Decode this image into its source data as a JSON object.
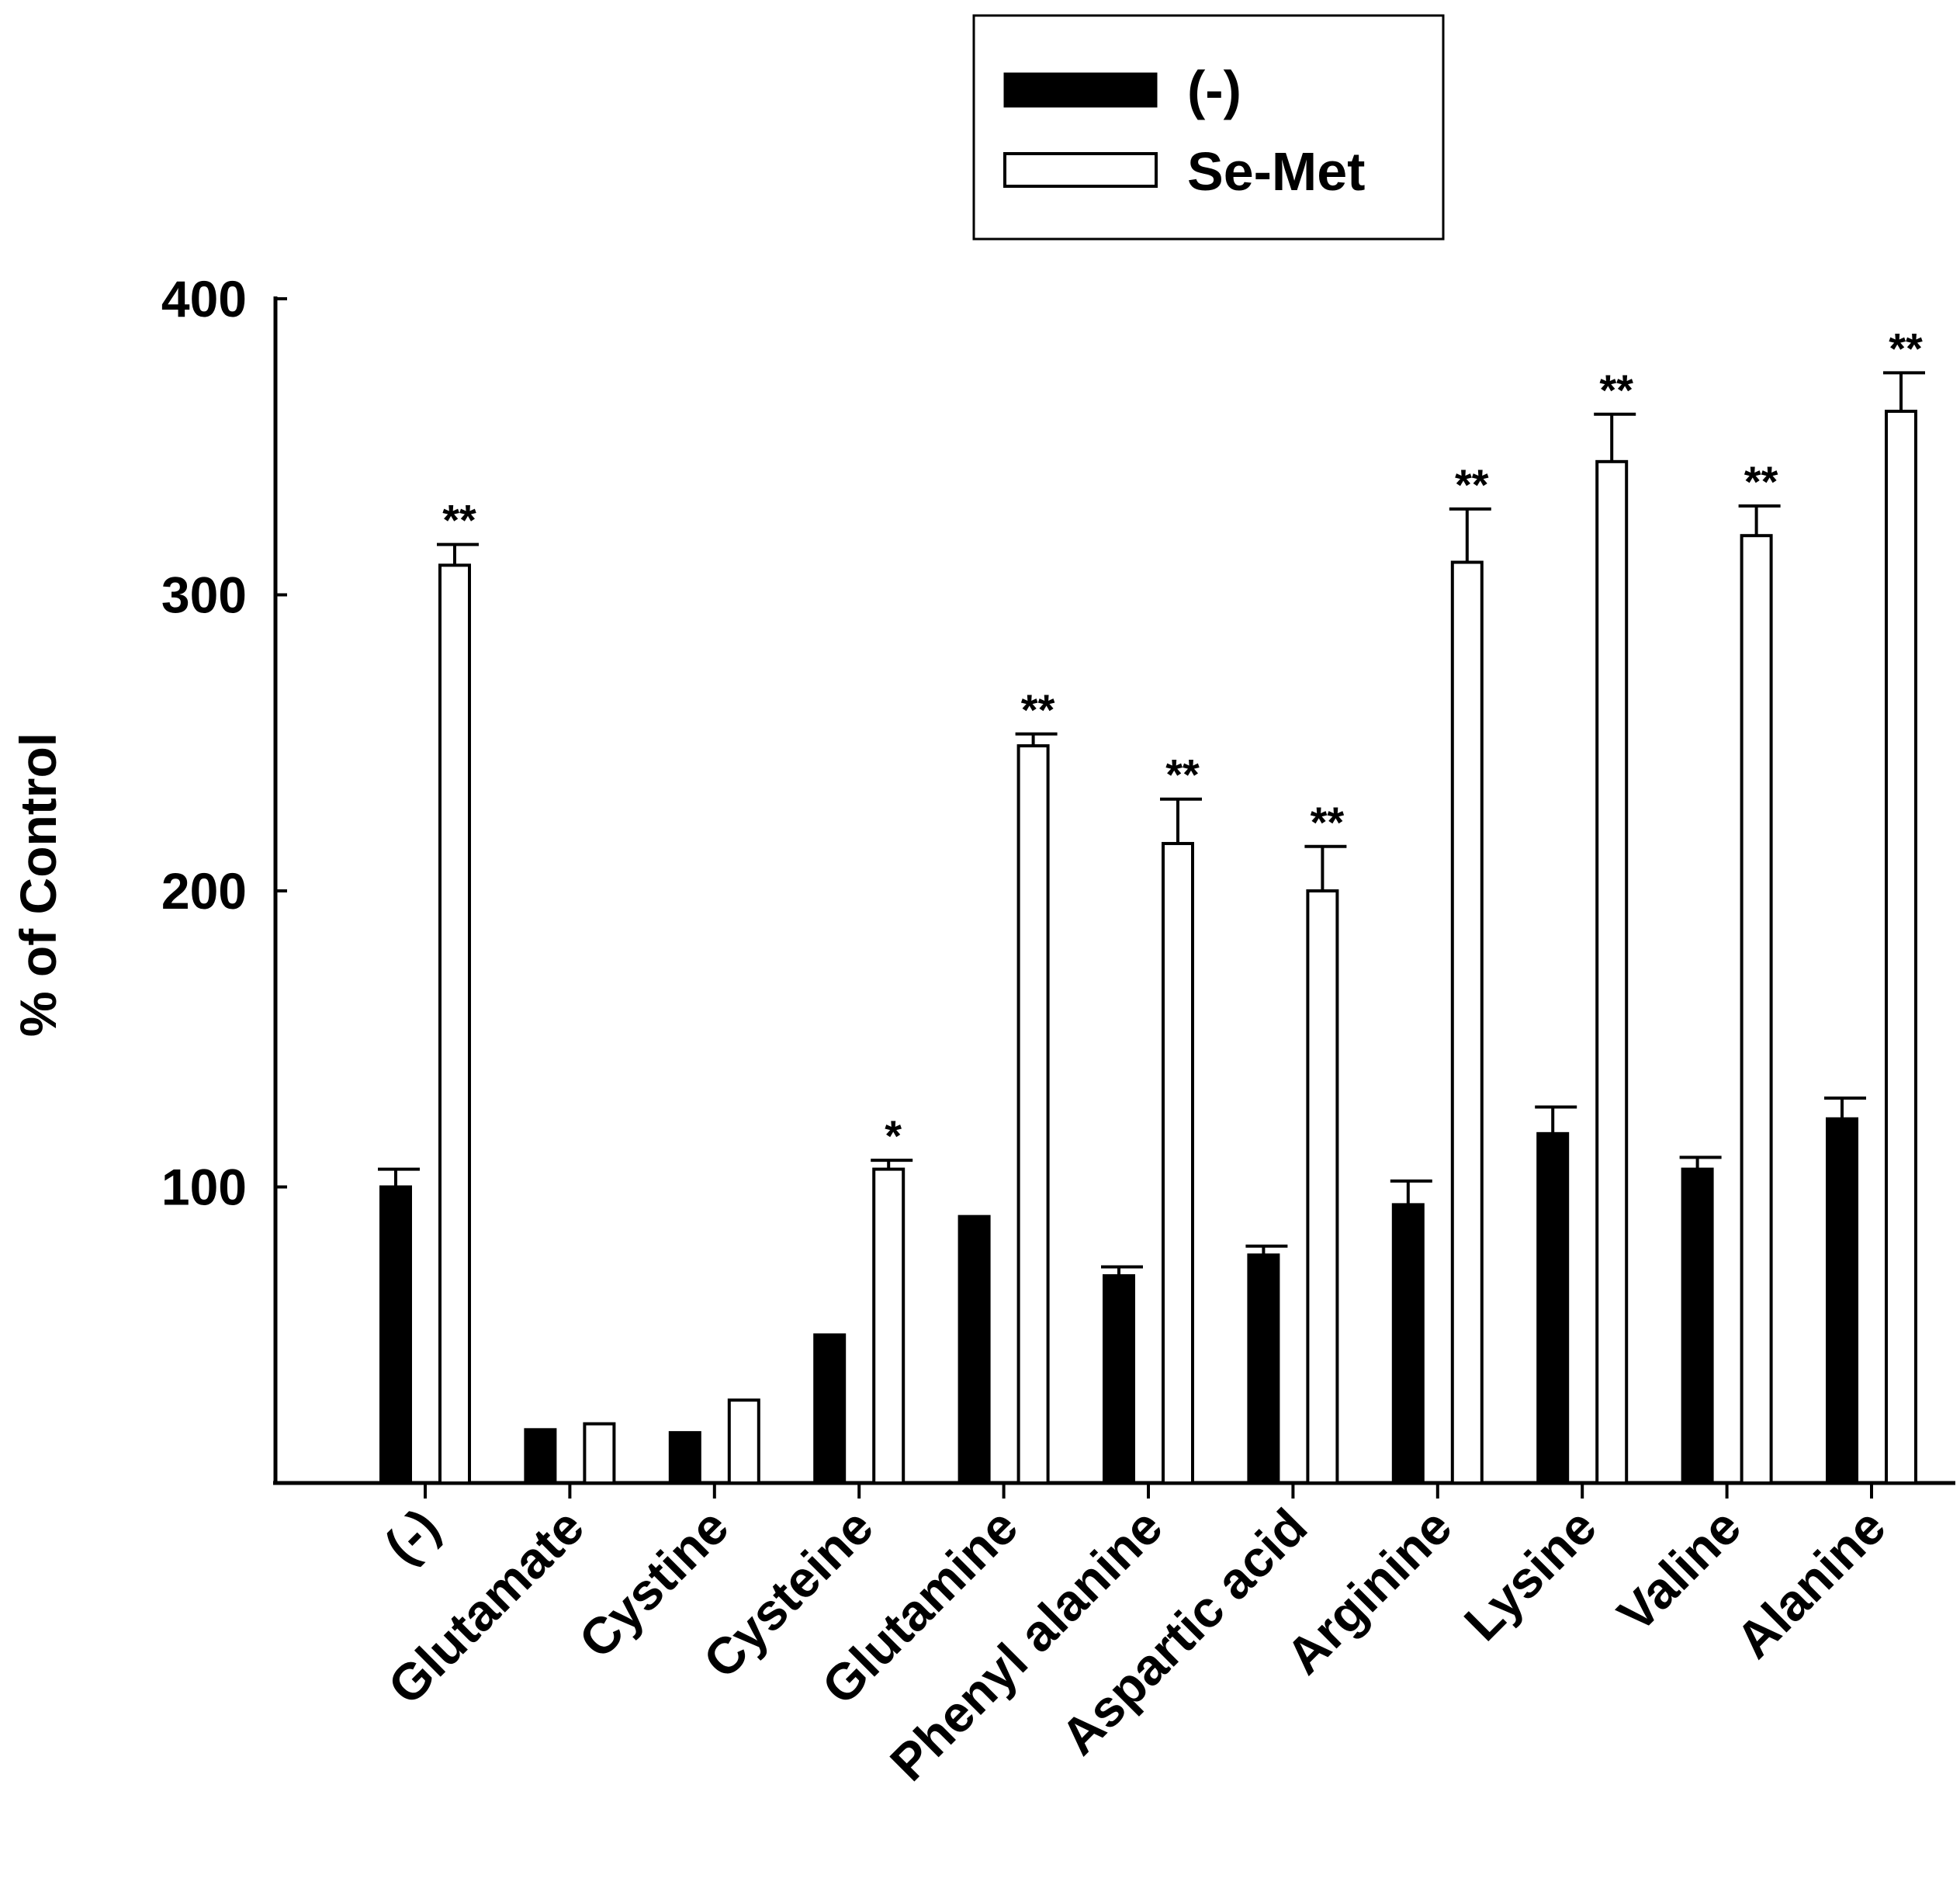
{
  "chart_data": {
    "type": "bar",
    "title": "",
    "xlabel": "",
    "ylabel": "% of Control",
    "ylim": [
      0,
      400
    ],
    "yticks": [
      100,
      200,
      300,
      400
    ],
    "legend_position": "top-center",
    "categories": [
      "(-)",
      "Glutamate",
      "Cystine",
      "Cysteine",
      "Glutamine",
      "Phenyl alanine",
      "Aspartic acid",
      "Arginine",
      "Lysine",
      "Valine",
      "Alanine"
    ],
    "series": [
      {
        "name": "(-)",
        "fill": "#000000",
        "values": [
          100,
          18,
          17,
          50,
          90,
          70,
          77,
          94,
          118,
          106,
          123
        ],
        "errors": [
          6,
          0,
          0,
          0,
          0,
          3,
          3,
          8,
          9,
          4,
          7
        ]
      },
      {
        "name": "Se-Met",
        "fill": "#ffffff",
        "values": [
          310,
          20,
          28,
          106,
          249,
          216,
          200,
          311,
          345,
          320,
          362
        ],
        "errors": [
          7,
          0,
          0,
          3,
          4,
          15,
          15,
          18,
          16,
          10,
          13
        ]
      }
    ],
    "significance": [
      "**",
      "",
      "",
      "*",
      "**",
      "**",
      "**",
      "**",
      "**",
      "**",
      "**"
    ]
  }
}
